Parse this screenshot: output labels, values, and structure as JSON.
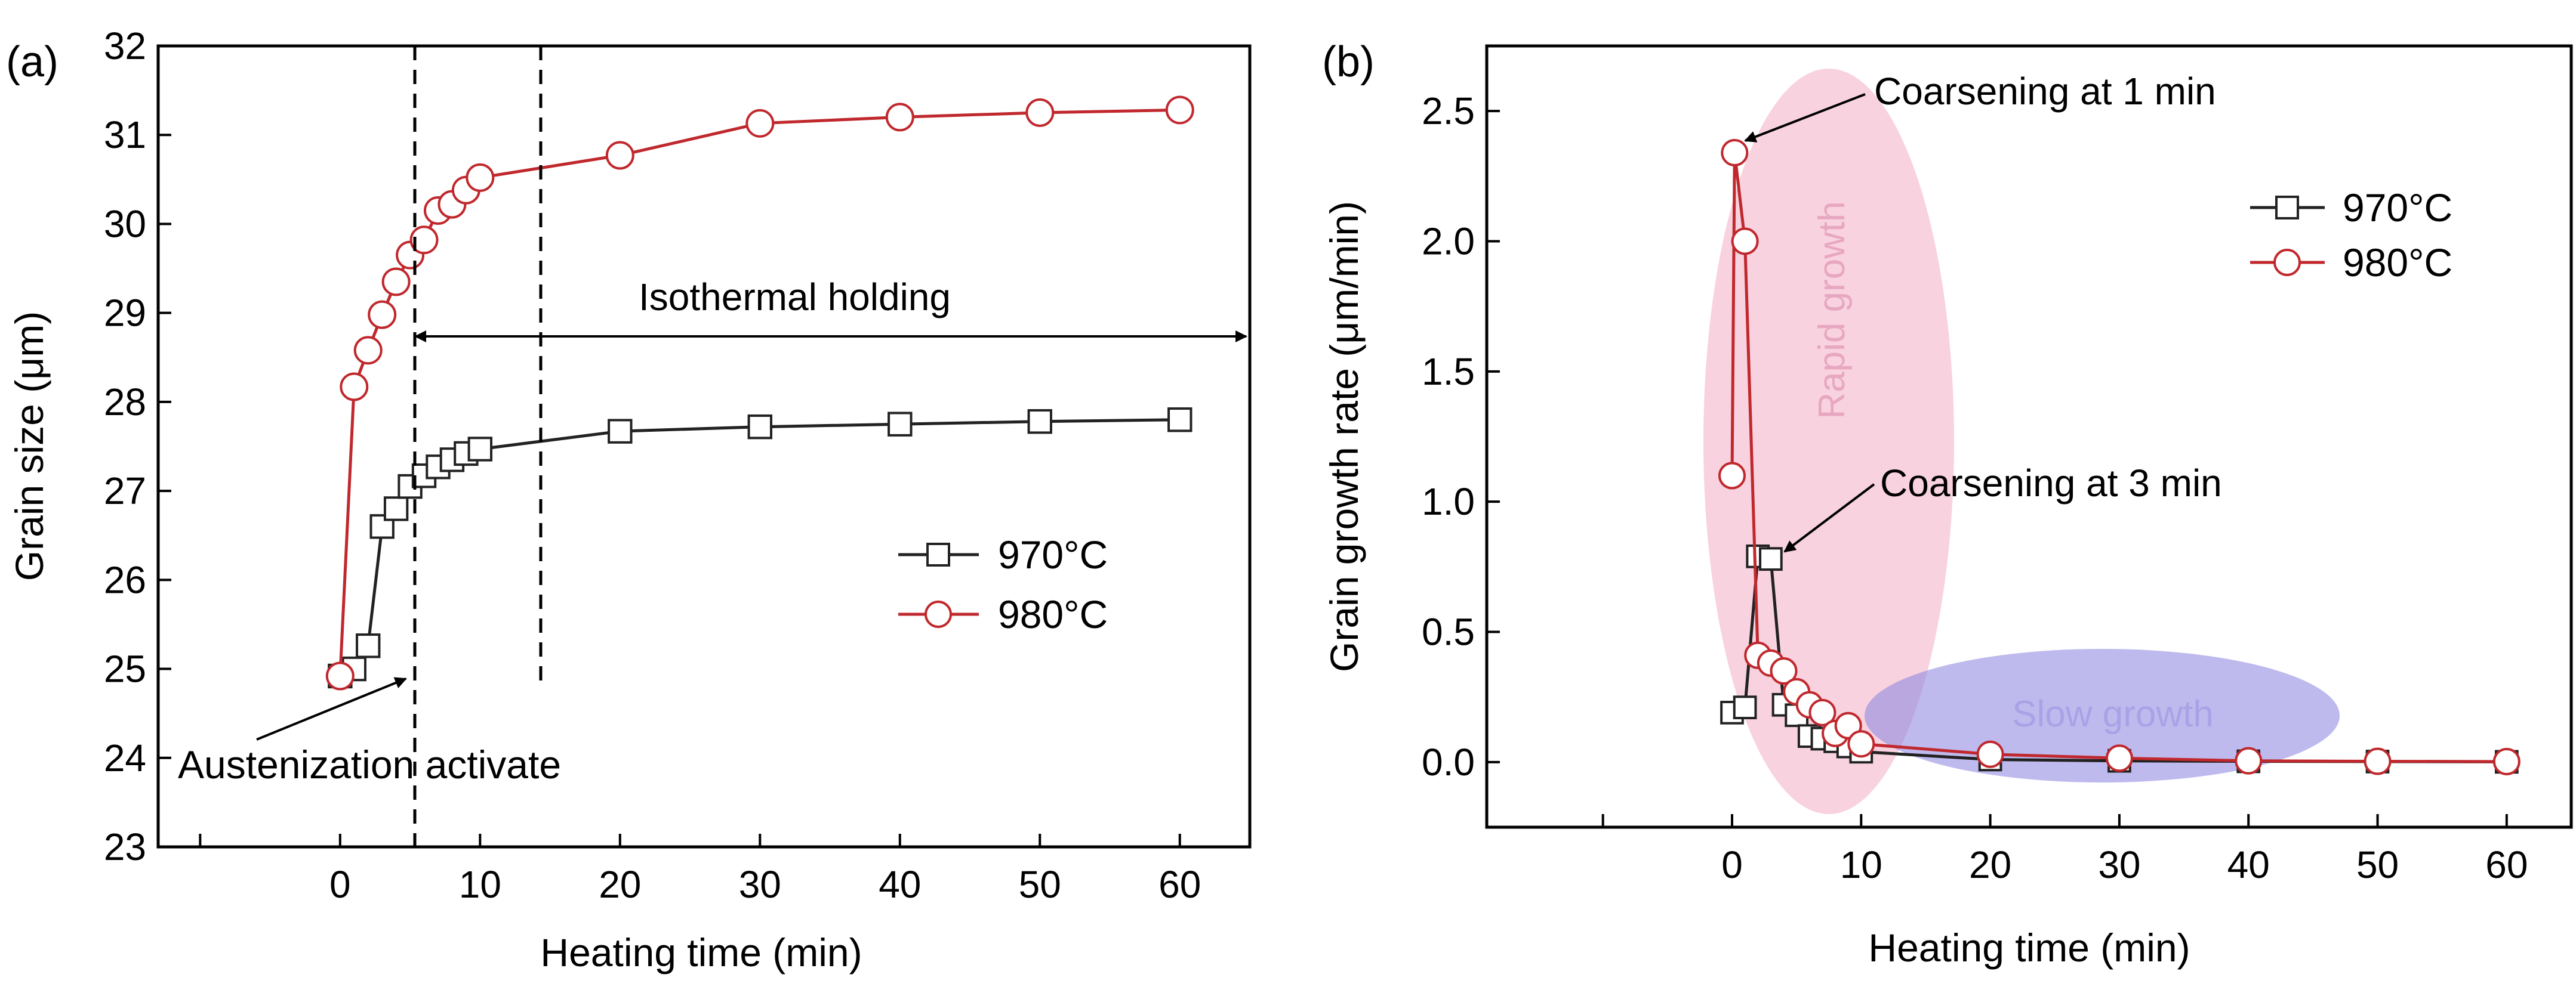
{
  "chart_data": [
    {
      "panel_label": "(a)",
      "type": "line",
      "xlabel": "Heating time (min)",
      "ylabel": "Grain size (μm)",
      "xlim": [
        -13,
        65
      ],
      "ylim": [
        23,
        32
      ],
      "xticks": [
        0,
        10,
        20,
        30,
        40,
        50,
        60
      ],
      "yticks": [
        23,
        24,
        25,
        26,
        27,
        28,
        29,
        30,
        31,
        32
      ],
      "series": [
        {
          "name": "970°C",
          "color": "#222222",
          "marker": "square",
          "x": [
            0,
            1,
            2,
            3,
            4,
            5,
            6,
            7,
            8,
            9,
            10,
            20,
            30,
            40,
            50,
            60
          ],
          "y": [
            24.92,
            25.0,
            25.26,
            26.6,
            26.8,
            27.05,
            27.17,
            27.27,
            27.35,
            27.42,
            27.47,
            27.67,
            27.72,
            27.75,
            27.78,
            27.8
          ]
        },
        {
          "name": "980°C",
          "color": "#c0282d",
          "marker": "circle",
          "x": [
            0,
            1,
            2,
            3,
            4,
            5,
            6,
            7,
            8,
            9,
            10,
            20,
            30,
            40,
            50,
            60
          ],
          "y": [
            24.92,
            28.17,
            28.58,
            28.98,
            29.35,
            29.65,
            29.82,
            30.15,
            30.22,
            30.38,
            30.52,
            30.77,
            31.13,
            31.2,
            31.25,
            31.28
          ]
        }
      ],
      "legend_position": "lower-right",
      "annotations": {
        "isothermal": "Isothermal holding",
        "austenization": "Austenization activate"
      }
    },
    {
      "panel_label": "(b)",
      "type": "line",
      "xlabel": "Heating time (min)",
      "ylabel": "Grain growth rate (μm/min)",
      "xlim": [
        -19,
        65
      ],
      "ylim": [
        -0.25,
        2.75
      ],
      "xticks": [
        0,
        10,
        20,
        30,
        40,
        50,
        60
      ],
      "yticks": [
        0.0,
        0.5,
        1.0,
        1.5,
        2.0,
        2.5
      ],
      "series": [
        {
          "name": "970°C",
          "color": "#222222",
          "marker": "square",
          "x": [
            0,
            1,
            2,
            3,
            4,
            5,
            6,
            7,
            8,
            9,
            10,
            20,
            30,
            40,
            50,
            60
          ],
          "y": [
            0.19,
            0.21,
            0.79,
            0.78,
            0.22,
            0.18,
            0.1,
            0.09,
            0.08,
            0.06,
            0.04,
            0.01,
            0.005,
            0.003,
            0.002,
            0.001
          ]
        },
        {
          "name": "980°C",
          "color": "#c0282d",
          "marker": "circle",
          "x": [
            0,
            0.2,
            1,
            2,
            3,
            4,
            5,
            6,
            7,
            8,
            9,
            10,
            20,
            30,
            40,
            50,
            60
          ],
          "y": [
            1.1,
            2.34,
            2.0,
            0.41,
            0.38,
            0.35,
            0.27,
            0.22,
            0.19,
            0.11,
            0.14,
            0.07,
            0.03,
            0.015,
            0.005,
            0.003,
            0.002
          ]
        }
      ],
      "legend_position": "top-right",
      "annotations": {
        "coarsen1": "Coarsening at 1 min",
        "coarsen3": "Coarsening at 3 min",
        "rapid": "Rapid growth",
        "slow": "Slow growth"
      }
    }
  ]
}
